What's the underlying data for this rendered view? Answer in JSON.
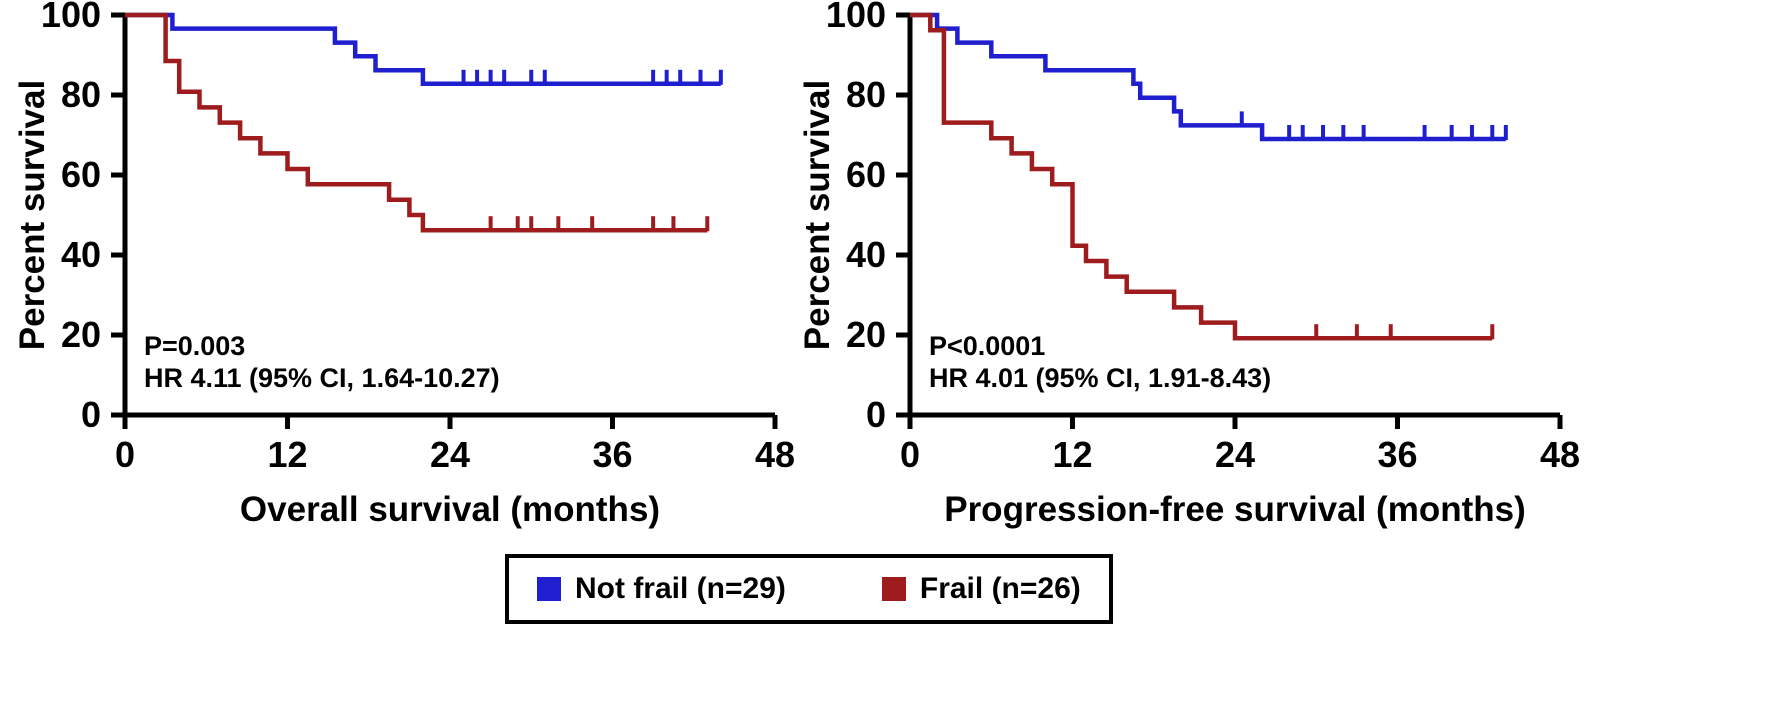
{
  "colors": {
    "not_frail": "#1f1fd0",
    "frail": "#9e1b1e",
    "axis": "#000000",
    "text": "#000000",
    "background": "#ffffff"
  },
  "legend": {
    "items": [
      {
        "id": "not-frail",
        "label": "Not frail (n=29)",
        "color_key": "not_frail"
      },
      {
        "id": "frail",
        "label": "Frail (n=26)",
        "color_key": "frail"
      }
    ]
  },
  "chart_data": [
    {
      "type": "line",
      "subtype": "kaplan-meier-step",
      "title": "",
      "xlabel": "Overall survival (months)",
      "ylabel": "Percent survival",
      "xlim": [
        0,
        48
      ],
      "ylim": [
        0,
        100
      ],
      "xticks": [
        0,
        12,
        24,
        36,
        48
      ],
      "yticks": [
        0,
        20,
        40,
        60,
        80,
        100
      ],
      "grid": false,
      "annotations": [
        {
          "text": "P=0.003",
          "x": 1.4,
          "y": 15
        },
        {
          "text": "HR 4.11 (95% CI, 1.64-10.27)",
          "x": 1.4,
          "y": 7
        }
      ],
      "series": [
        {
          "id": "not-frail",
          "name": "Not frail (n=29)",
          "color_key": "not_frail",
          "step_points": [
            [
              0,
              100
            ],
            [
              3.5,
              96.6
            ],
            [
              15.5,
              93.1
            ],
            [
              17,
              89.7
            ],
            [
              18.5,
              86.2
            ],
            [
              22,
              82.8
            ],
            [
              44,
              82.8
            ]
          ],
          "censor_marks": [
            [
              25,
              82.8
            ],
            [
              26,
              82.8
            ],
            [
              27,
              82.8
            ],
            [
              28,
              82.8
            ],
            [
              30,
              82.8
            ],
            [
              31,
              82.8
            ],
            [
              39,
              82.8
            ],
            [
              40,
              82.8
            ],
            [
              41,
              82.8
            ],
            [
              42.5,
              82.8
            ],
            [
              44,
              82.8
            ]
          ]
        },
        {
          "id": "frail",
          "name": "Frail (n=26)",
          "color_key": "frail",
          "step_points": [
            [
              0,
              100
            ],
            [
              3,
              88.5
            ],
            [
              4,
              80.8
            ],
            [
              5.5,
              76.9
            ],
            [
              7,
              73.1
            ],
            [
              8.5,
              69.2
            ],
            [
              10,
              65.4
            ],
            [
              12,
              61.5
            ],
            [
              13.5,
              57.7
            ],
            [
              19.5,
              53.8
            ],
            [
              21,
              50
            ],
            [
              22,
              46.2
            ],
            [
              43,
              46.2
            ]
          ],
          "censor_marks": [
            [
              27,
              46.2
            ],
            [
              29,
              46.2
            ],
            [
              30,
              46.2
            ],
            [
              32,
              46.2
            ],
            [
              34.5,
              46.2
            ],
            [
              39,
              46.2
            ],
            [
              40.5,
              46.2
            ],
            [
              43,
              46.2
            ]
          ]
        }
      ]
    },
    {
      "type": "line",
      "subtype": "kaplan-meier-step",
      "title": "",
      "xlabel": "Progression-free survival (months)",
      "ylabel": "Percent survival",
      "xlim": [
        0,
        48
      ],
      "ylim": [
        0,
        100
      ],
      "xticks": [
        0,
        12,
        24,
        36,
        48
      ],
      "yticks": [
        0,
        20,
        40,
        60,
        80,
        100
      ],
      "grid": false,
      "annotations": [
        {
          "text": "P<0.0001",
          "x": 1.4,
          "y": 15
        },
        {
          "text": "HR 4.01 (95% CI, 1.91-8.43)",
          "x": 1.4,
          "y": 7
        }
      ],
      "series": [
        {
          "id": "not-frail",
          "name": "Not frail (n=29)",
          "color_key": "not_frail",
          "step_points": [
            [
              0,
              100
            ],
            [
              2,
              96.6
            ],
            [
              3.5,
              93.1
            ],
            [
              6,
              89.7
            ],
            [
              10,
              86.2
            ],
            [
              16.5,
              82.8
            ],
            [
              17,
              79.3
            ],
            [
              19.5,
              75.9
            ],
            [
              20,
              72.4
            ],
            [
              26,
              69
            ],
            [
              44,
              69
            ]
          ],
          "censor_marks": [
            [
              24.5,
              72.4
            ],
            [
              28,
              69
            ],
            [
              29,
              69
            ],
            [
              30.5,
              69
            ],
            [
              32,
              69
            ],
            [
              33.5,
              69
            ],
            [
              38,
              69
            ],
            [
              40,
              69
            ],
            [
              41.5,
              69
            ],
            [
              43,
              69
            ],
            [
              44,
              69
            ]
          ]
        },
        {
          "id": "frail",
          "name": "Frail (n=26)",
          "color_key": "frail",
          "step_points": [
            [
              0,
              100
            ],
            [
              1.5,
              96.2
            ],
            [
              2.5,
              73.1
            ],
            [
              6,
              69.2
            ],
            [
              7.5,
              65.4
            ],
            [
              9,
              61.5
            ],
            [
              10.5,
              57.7
            ],
            [
              12,
              42.3
            ],
            [
              13,
              38.5
            ],
            [
              14.5,
              34.6
            ],
            [
              16,
              30.8
            ],
            [
              19.5,
              26.9
            ],
            [
              21.5,
              23.1
            ],
            [
              24,
              19.2
            ],
            [
              43,
              19.2
            ]
          ],
          "censor_marks": [
            [
              30,
              19.2
            ],
            [
              33,
              19.2
            ],
            [
              35.5,
              19.2
            ],
            [
              43,
              19.2
            ]
          ]
        }
      ]
    }
  ]
}
